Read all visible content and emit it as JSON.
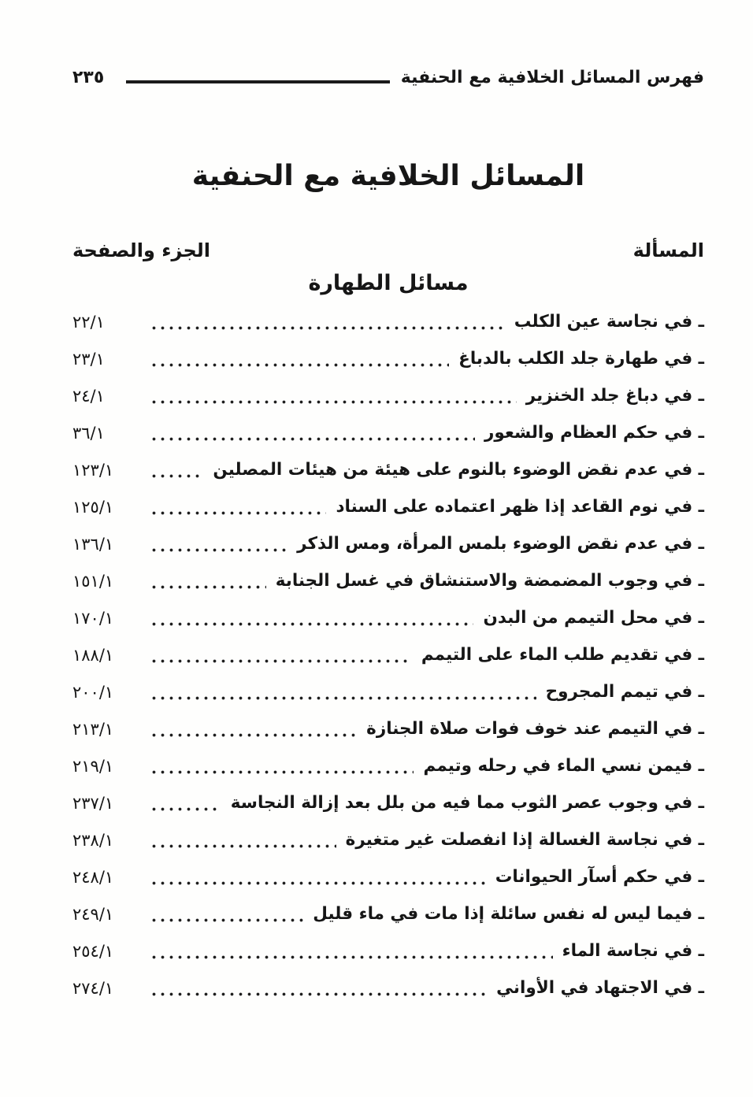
{
  "page": {
    "header": {
      "title": "فهرس المسائل الخلافية مع الحنفية",
      "page_number": "٢٣٥"
    },
    "main_title": "المسائل الخلافية مع الحنفية",
    "columns": {
      "issue": "المسألة",
      "volume_page": "الجزء والصفحة"
    },
    "section_title": "مسائل الطهارة",
    "entries": [
      {
        "label": "ـ في نجاسة عين الكلب",
        "ref": "٢٢/١"
      },
      {
        "label": "ـ في طهارة جلد الكلب بالدباغ",
        "ref": "٢٣/١"
      },
      {
        "label": "ـ في دباغ جلد الخنزير",
        "ref": "٢٤/١"
      },
      {
        "label": "ـ في حكم العظام والشعور",
        "ref": "٣٦/١"
      },
      {
        "label": "ـ في عدم نقض الوضوء بالنوم على هيئة من هيئات المصلين",
        "ref": "١٢٣/١"
      },
      {
        "label": "ـ في نوم القاعد إذا ظهر اعتماده على السناد",
        "ref": "١٢٥/١"
      },
      {
        "label": "ـ في عدم نقض الوضوء بلمس المرأة، ومس الذكر",
        "ref": "١٣٦/١"
      },
      {
        "label": "ـ في وجوب المضمضة والاستنشاق في غسل الجنابة",
        "ref": "١٥١/١"
      },
      {
        "label": "ـ في محل التيمم من البدن",
        "ref": "١٧٠/١"
      },
      {
        "label": "ـ في تقديم طلب الماء على التيمم",
        "ref": "١٨٨/١"
      },
      {
        "label": "ـ في تيمم المجروح",
        "ref": "٢٠٠/١"
      },
      {
        "label": "ـ في التيمم عند خوف فوات صلاة الجنازة",
        "ref": "٢١٣/١"
      },
      {
        "label": "ـ فيمن نسي الماء في رحله وتيمم",
        "ref": "٢١٩/١"
      },
      {
        "label": "ـ في وجوب عصر الثوب مما فيه من بلل بعد إزالة النجاسة",
        "ref": "٢٣٧/١"
      },
      {
        "label": "ـ في نجاسة الغسالة إذا انفصلت غير متغيرة",
        "ref": "٢٣٨/١"
      },
      {
        "label": "ـ في حكم أسآر الحيوانات",
        "ref": "٢٤٨/١"
      },
      {
        "label": "ـ فيما ليس له نفس سائلة إذا مات في ماء قليل",
        "ref": "٢٤٩/١"
      },
      {
        "label": "ـ في نجاسة الماء",
        "ref": "٢٥٤/١"
      },
      {
        "label": "ـ في الاجتهاد في الأواني",
        "ref": "٢٧٤/١"
      }
    ]
  }
}
